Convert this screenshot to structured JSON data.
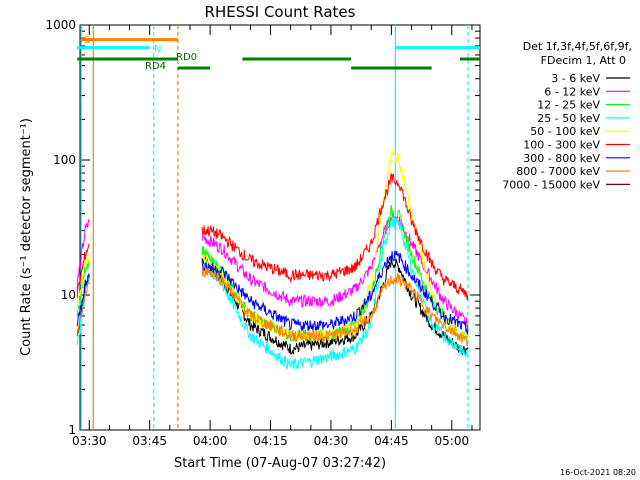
{
  "chart_data": {
    "type": "line",
    "title": "RHESSI Count Rates",
    "xlabel": "Start Time (07-Aug-07 03:27:42)",
    "ylabel": "Count Rate (s⁻¹ detector segment⁻¹)",
    "y_scale": "log",
    "ylim": [
      1,
      1000
    ],
    "xlim": [
      "03:27:42",
      "05:07:00"
    ],
    "x_ticks": [
      "03:30",
      "03:45",
      "04:00",
      "04:15",
      "04:30",
      "04:45",
      "05:00"
    ],
    "y_ticks": [
      "1",
      "10",
      "100",
      "1000"
    ],
    "legend_header": [
      "Det 1f,3f,4f,5f,6f,9f,",
      "FDecim 1, Att 0"
    ],
    "legend_placement": "right",
    "timestamp": "16-Oct-2021 08:20",
    "series": [
      {
        "name": "3 - 6 keV",
        "color": "#000000",
        "x": [
          "03:27",
          "03:29",
          "03:30",
          "03:57",
          "03:58",
          "04:00",
          "04:03",
          "04:10",
          "04:20",
          "04:30",
          "04:36",
          "04:40",
          "04:43",
          "04:45",
          "04:47",
          "04:50",
          "04:55",
          "04:58",
          "05:02",
          "05:04"
        ],
        "y": [
          5,
          12,
          14,
          null,
          19,
          16,
          13,
          6,
          4,
          4.5,
          5,
          7,
          12,
          18,
          16,
          10,
          6,
          5,
          4,
          4
        ]
      },
      {
        "name": "6 - 12 keV",
        "color": "#ff00ff",
        "x": [
          "03:27",
          "03:29",
          "03:30",
          "03:57",
          "03:58",
          "04:00",
          "04:03",
          "04:10",
          "04:20",
          "04:30",
          "04:36",
          "04:40",
          "04:43",
          "04:45",
          "04:47",
          "04:50",
          "04:55",
          "04:58",
          "05:02",
          "05:04"
        ],
        "y": [
          12,
          30,
          35,
          null,
          27,
          25,
          22,
          13,
          9,
          9,
          11,
          16,
          28,
          38,
          36,
          24,
          13,
          9,
          7,
          6
        ]
      },
      {
        "name": "12 - 25 keV",
        "color": "#00ff00",
        "x": [
          "03:27",
          "03:29",
          "03:30",
          "03:57",
          "03:58",
          "04:00",
          "04:03",
          "04:10",
          "04:20",
          "04:30",
          "04:36",
          "04:40",
          "04:43",
          "04:45",
          "04:47",
          "04:50",
          "04:55",
          "04:58",
          "05:02",
          "05:04"
        ],
        "y": [
          7,
          16,
          18,
          null,
          22,
          18,
          15,
          7,
          5,
          5,
          6,
          10,
          26,
          42,
          38,
          20,
          9,
          7,
          5,
          5
        ]
      },
      {
        "name": "25 - 50 keV",
        "color": "#00ffff",
        "x": [
          "03:27",
          "03:29",
          "03:30",
          "03:57",
          "03:58",
          "04:00",
          "04:03",
          "04:10",
          "04:20",
          "04:30",
          "04:36",
          "04:40",
          "04:43",
          "04:45",
          "04:47",
          "04:50",
          "04:55",
          "04:58",
          "05:02",
          "05:04"
        ],
        "y": [
          4,
          11,
          13,
          null,
          18,
          15,
          12,
          5,
          3,
          3.5,
          4,
          6,
          22,
          35,
          33,
          16,
          6,
          5,
          4,
          3.5
        ]
      },
      {
        "name": "50 - 100 keV",
        "color": "#ffff00",
        "x": [
          "03:27",
          "03:29",
          "03:30",
          "03:57",
          "03:58",
          "04:00",
          "04:03",
          "04:10",
          "04:20",
          "04:30",
          "04:36",
          "04:40",
          "04:43",
          "04:45",
          "04:47",
          "04:50",
          "04:55",
          "04:58",
          "05:02",
          "05:04"
        ],
        "y": [
          8,
          18,
          20,
          null,
          20,
          17,
          14,
          7,
          5,
          5,
          6,
          12,
          50,
          110,
          100,
          40,
          10,
          7,
          5,
          5
        ]
      },
      {
        "name": "100 - 300 keV",
        "color": "#ff0000",
        "x": [
          "03:27",
          "03:29",
          "03:30",
          "03:57",
          "03:58",
          "04:00",
          "04:03",
          "04:10",
          "04:20",
          "04:30",
          "04:36",
          "04:40",
          "04:43",
          "04:45",
          "04:47",
          "04:50",
          "04:55",
          "04:58",
          "05:02",
          "05:04"
        ],
        "y": [
          10,
          20,
          24,
          null,
          30,
          30,
          27,
          18,
          14,
          14,
          16,
          24,
          50,
          72,
          68,
          35,
          17,
          13,
          11,
          10
        ]
      },
      {
        "name": "300 - 800 keV",
        "color": "#0000ff",
        "x": [
          "03:27",
          "03:29",
          "03:30",
          "03:57",
          "03:58",
          "04:00",
          "04:03",
          "04:10",
          "04:20",
          "04:30",
          "04:36",
          "04:40",
          "04:43",
          "04:45",
          "04:47",
          "04:50",
          "04:55",
          "04:58",
          "05:02",
          "05:04"
        ],
        "y": [
          6,
          12,
          14,
          null,
          17,
          16,
          15,
          9,
          6,
          6,
          7,
          10,
          16,
          20,
          19,
          14,
          9,
          7,
          6,
          5.5
        ]
      },
      {
        "name": "800 - 7000 keV",
        "color": "#ff8000",
        "x": [
          "03:27",
          "03:29",
          "03:30",
          "03:57",
          "03:58",
          "04:00",
          "04:03",
          "04:10",
          "04:20",
          "04:30",
          "04:36",
          "04:40",
          "04:43",
          "04:45",
          "04:47",
          "04:50",
          "04:55",
          "04:58",
          "05:02",
          "05:04"
        ],
        "y": [
          5,
          10,
          12,
          null,
          15,
          15,
          13,
          7,
          5,
          5,
          5.5,
          7,
          11,
          13,
          13,
          11,
          7,
          6,
          5,
          4.5
        ]
      },
      {
        "name": "7000 - 15000 keV",
        "color": "#800000",
        "x": [],
        "y": []
      }
    ],
    "annotations": [
      {
        "label": "S",
        "color": "#ff8000"
      },
      {
        "label": "N",
        "color": "#00ffff"
      },
      {
        "label": "RD4",
        "color": "#008000"
      },
      {
        "label": "RD0",
        "color": "#008000"
      }
    ],
    "flag_bars": [
      {
        "color": "#ff8000",
        "level": 780,
        "x": [
          [
            "03:28",
            "03:52"
          ]
        ]
      },
      {
        "color": "#00ffff",
        "level": 680,
        "x": [
          [
            "03:27",
            "03:45"
          ],
          [
            "04:46",
            "05:07"
          ]
        ]
      },
      {
        "color": "#008000",
        "level": 560,
        "x": [
          [
            "03:27",
            "03:52"
          ],
          [
            "04:08",
            "04:35"
          ],
          [
            "05:02",
            "05:07"
          ]
        ]
      },
      {
        "color": "#008000",
        "level": 480,
        "x": [
          [
            "03:52",
            "04:00"
          ],
          [
            "04:35",
            "04:55"
          ]
        ]
      }
    ],
    "vertical_lines": [
      {
        "x": "03:28",
        "color": "#00ffff",
        "style": "solid"
      },
      {
        "x": "03:31",
        "color": "#ff8000",
        "style": "solid"
      },
      {
        "x": "03:46",
        "color": "#00ffff",
        "style": "dashed"
      },
      {
        "x": "03:52",
        "color": "#ff8000",
        "style": "dashed"
      },
      {
        "x": "04:46",
        "color": "#00ffff",
        "style": "solid"
      },
      {
        "x": "05:04",
        "color": "#00ffff",
        "style": "dashed"
      }
    ]
  }
}
